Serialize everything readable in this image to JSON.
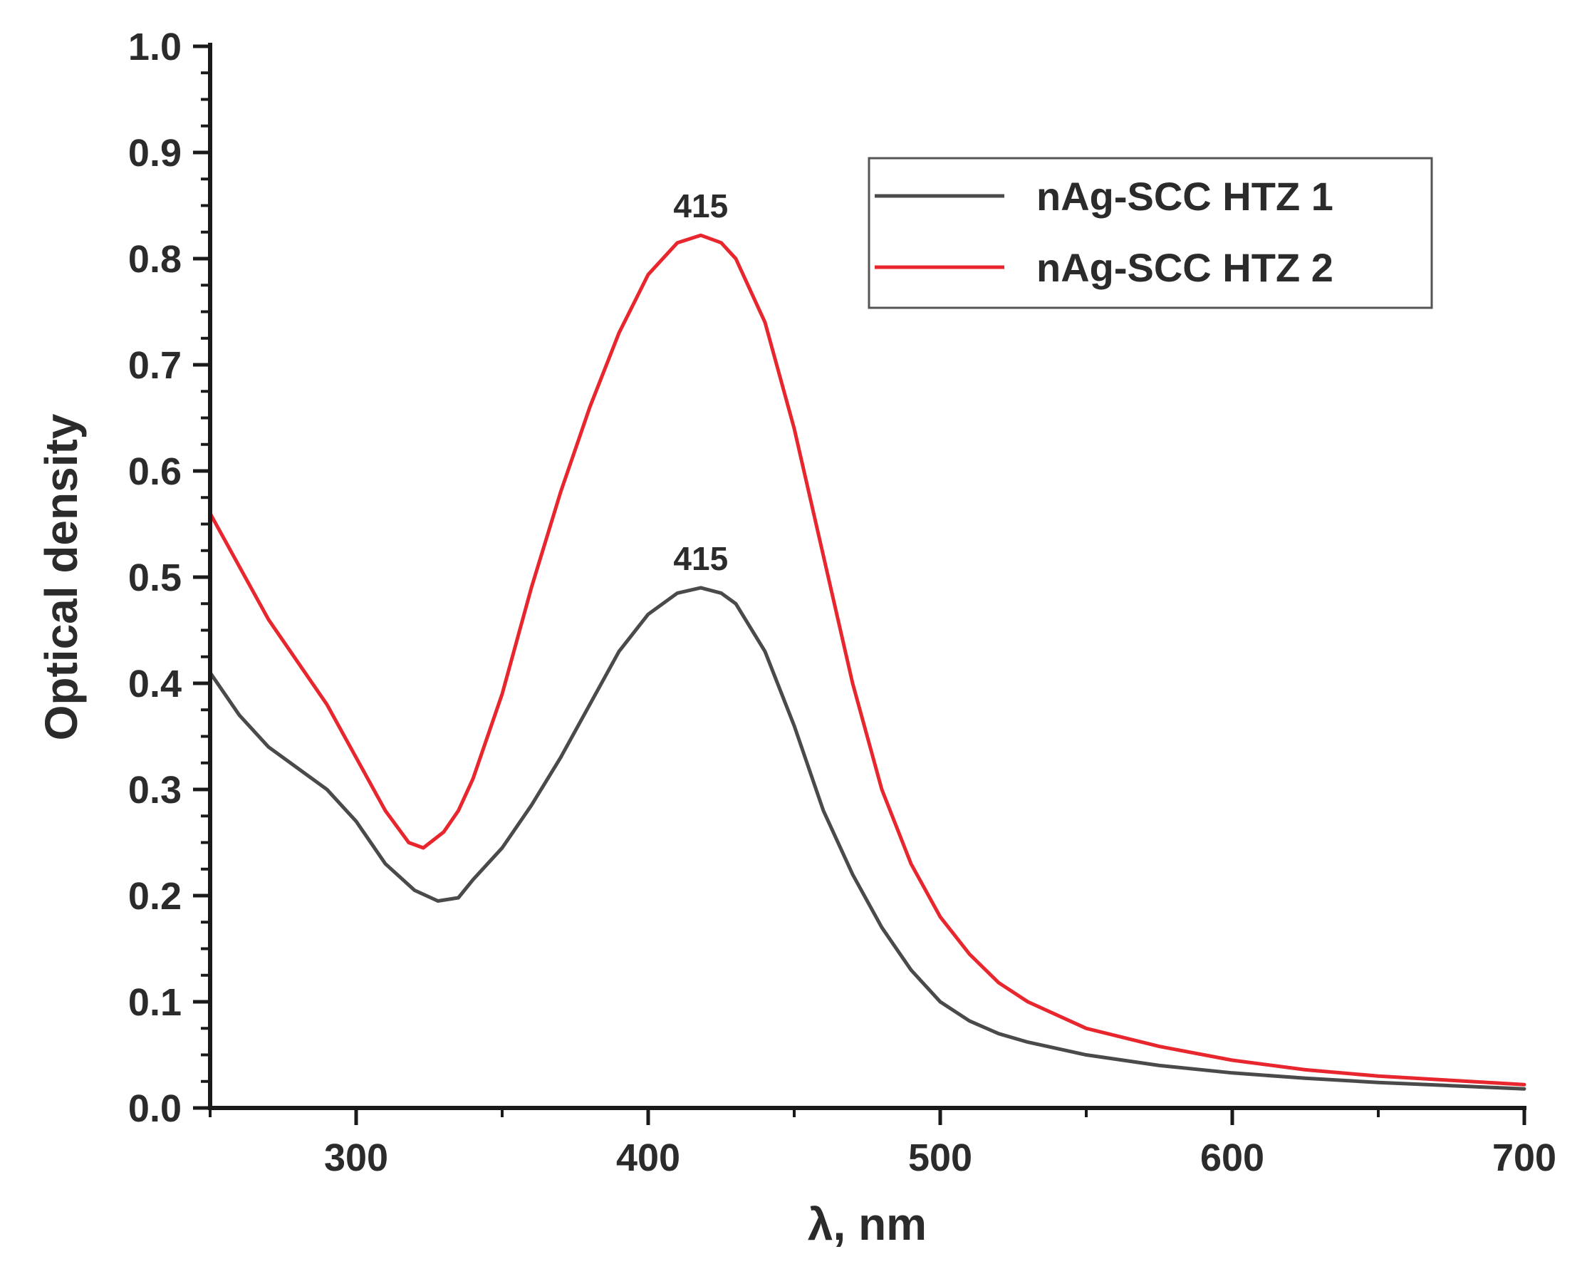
{
  "chart_data": {
    "type": "line",
    "title": "",
    "xlabel": "λ, nm",
    "ylabel": "Optical density",
    "xlim": [
      250,
      700
    ],
    "ylim": [
      0.0,
      1.0
    ],
    "xticks": [
      300,
      400,
      500,
      600,
      700
    ],
    "xtick_labels": [
      "300",
      "400",
      "500",
      "600",
      "700"
    ],
    "yticks": [
      0.0,
      0.1,
      0.2,
      0.3,
      0.4,
      0.5,
      0.6,
      0.7,
      0.8,
      0.9,
      1.0
    ],
    "ytick_labels": [
      "0.0",
      "0.1",
      "0.2",
      "0.3",
      "0.4",
      "0.5",
      "0.6",
      "0.7",
      "0.8",
      "0.9",
      "1.0"
    ],
    "grid": false,
    "legend_position": "top-right",
    "series": [
      {
        "name": "nAg-SCC HTZ 1",
        "color": "#4a4a4a",
        "x": [
          250,
          260,
          270,
          280,
          290,
          300,
          310,
          320,
          328,
          335,
          340,
          350,
          360,
          370,
          380,
          390,
          400,
          410,
          418,
          425,
          430,
          440,
          450,
          460,
          470,
          480,
          490,
          500,
          510,
          520,
          530,
          550,
          575,
          600,
          625,
          650,
          675,
          700
        ],
        "y": [
          0.41,
          0.37,
          0.34,
          0.32,
          0.3,
          0.27,
          0.23,
          0.205,
          0.195,
          0.198,
          0.215,
          0.245,
          0.285,
          0.33,
          0.38,
          0.43,
          0.465,
          0.485,
          0.49,
          0.485,
          0.475,
          0.43,
          0.36,
          0.28,
          0.22,
          0.17,
          0.13,
          0.1,
          0.082,
          0.07,
          0.062,
          0.05,
          0.04,
          0.033,
          0.028,
          0.024,
          0.021,
          0.018
        ]
      },
      {
        "name": "nAg-SCC HTZ 2",
        "color": "#e8262d",
        "x": [
          250,
          260,
          270,
          280,
          290,
          300,
          310,
          318,
          323,
          330,
          335,
          340,
          350,
          360,
          370,
          380,
          390,
          400,
          410,
          418,
          425,
          430,
          440,
          450,
          460,
          470,
          480,
          490,
          500,
          510,
          520,
          530,
          550,
          575,
          600,
          625,
          650,
          675,
          700
        ],
        "y": [
          0.56,
          0.51,
          0.46,
          0.42,
          0.38,
          0.33,
          0.28,
          0.25,
          0.245,
          0.26,
          0.28,
          0.31,
          0.39,
          0.49,
          0.58,
          0.66,
          0.73,
          0.785,
          0.815,
          0.822,
          0.815,
          0.8,
          0.74,
          0.64,
          0.52,
          0.4,
          0.3,
          0.23,
          0.18,
          0.145,
          0.118,
          0.1,
          0.075,
          0.058,
          0.045,
          0.036,
          0.03,
          0.026,
          0.022
        ]
      }
    ],
    "annotations": [
      {
        "text": "415",
        "x": 418,
        "y": 0.822
      },
      {
        "text": "415",
        "x": 418,
        "y": 0.49
      }
    ]
  }
}
